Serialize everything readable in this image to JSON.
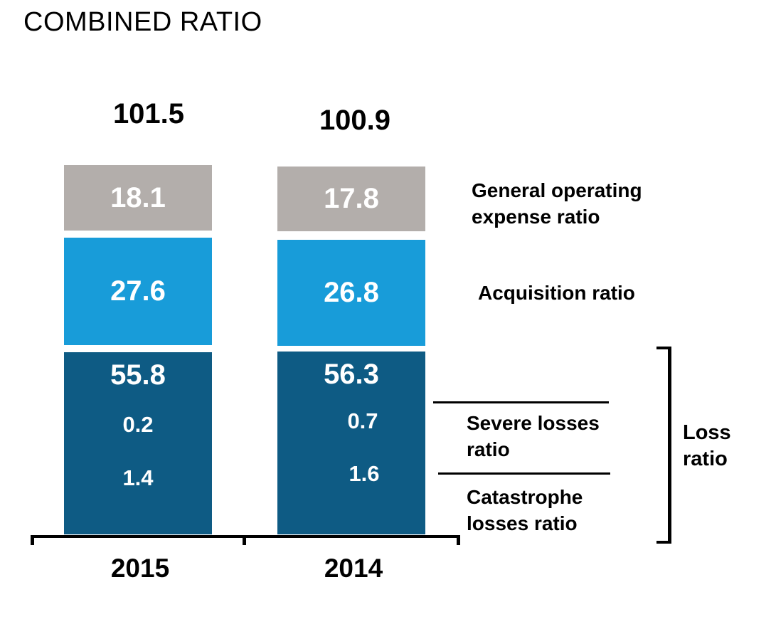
{
  "title": "COMBINED RATIO",
  "chart_data": {
    "type": "bar",
    "subtype": "stacked-column",
    "title": "COMBINED RATIO",
    "categories": [
      "2015",
      "2014"
    ],
    "totals": [
      101.5,
      100.9
    ],
    "series": [
      {
        "name": "General operating expense ratio",
        "values": [
          18.1,
          17.8
        ],
        "color": "#b3aeab"
      },
      {
        "name": "Acquisition ratio",
        "values": [
          27.6,
          26.8
        ],
        "color": "#189cd9"
      },
      {
        "name": "Loss ratio",
        "values": [
          55.8,
          56.3
        ],
        "color": "#0e5b84",
        "components": [
          {
            "name": "Severe losses ratio",
            "values": [
              0.2,
              0.7
            ]
          },
          {
            "name": "Catastrophe losses ratio",
            "values": [
              1.4,
              1.6
            ]
          }
        ]
      }
    ],
    "value_labels": "inside-white-bold",
    "legend_position": "right-annotations",
    "axis": {
      "baseline": true,
      "ticks": [
        "start",
        "middle",
        "end"
      ],
      "grid": false
    }
  },
  "annotations": {
    "general_operating": "General operating expense ratio",
    "acquisition": "Acquisition ratio",
    "severe": "Severe losses ratio",
    "catastrophe": "Catastrophe losses ratio",
    "loss": "Loss ratio"
  },
  "colors": {
    "gray_segment": "#b3aeab",
    "light_blue_segment": "#189cd9",
    "dark_blue_segment": "#0e5b84",
    "text": "#000000",
    "value_text": "#ffffff",
    "background": "#ffffff"
  }
}
